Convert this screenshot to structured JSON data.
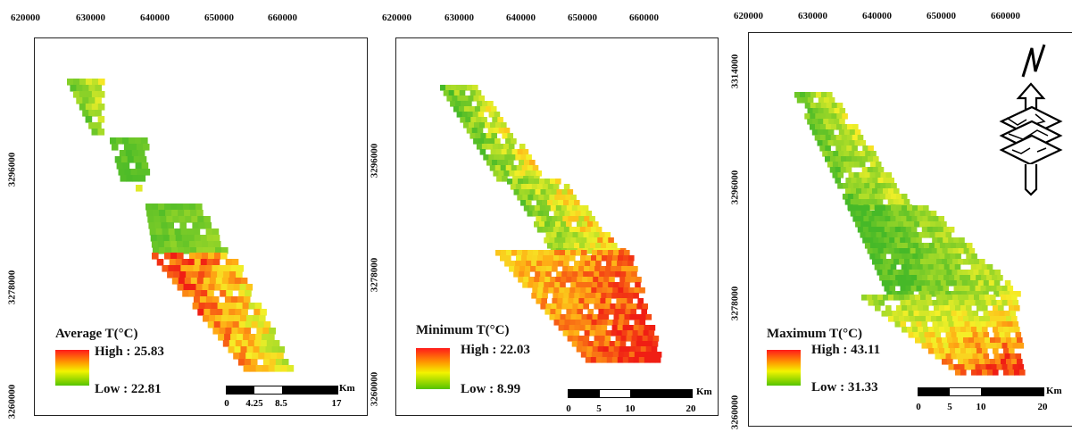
{
  "panels": [
    {
      "legend": {
        "title": "Average T(°C)",
        "high": "High : 25.83",
        "low": "Low : 22.81"
      },
      "x_ticks": [
        "620000",
        "630000",
        "640000",
        "650000",
        "660000"
      ],
      "y_ticks": [
        "3296000",
        "3278000",
        "3260000"
      ],
      "scale": {
        "unit": "Km",
        "labels": [
          "0",
          "4.25",
          "8.5",
          "17"
        ]
      }
    },
    {
      "legend": {
        "title": "Minimum T(°C)",
        "high": "High : 22.03",
        "low": "Low : 8.99"
      },
      "x_ticks": [
        "620000",
        "630000",
        "640000",
        "650000",
        "660000"
      ],
      "y_ticks": [
        "3296000",
        "3278000",
        "3260000"
      ],
      "scale": {
        "unit": "Km",
        "labels": [
          "0",
          "5",
          "10",
          "20"
        ]
      }
    },
    {
      "legend": {
        "title": "Maximum T(°C)",
        "high": "High : 43.11",
        "low": "Low : 31.33"
      },
      "x_ticks": [
        "620000",
        "630000",
        "640000",
        "650000",
        "660000"
      ],
      "y_ticks": [
        "3314000",
        "3296000",
        "3278000",
        "3260000"
      ],
      "scale": {
        "unit": "Km",
        "labels": [
          "0",
          "5",
          "10",
          "20"
        ]
      },
      "north_arrow_label": "N"
    }
  ],
  "colors": {
    "high": "#ff1a1a",
    "mid": "#f3f300",
    "low": "#55c300"
  }
}
